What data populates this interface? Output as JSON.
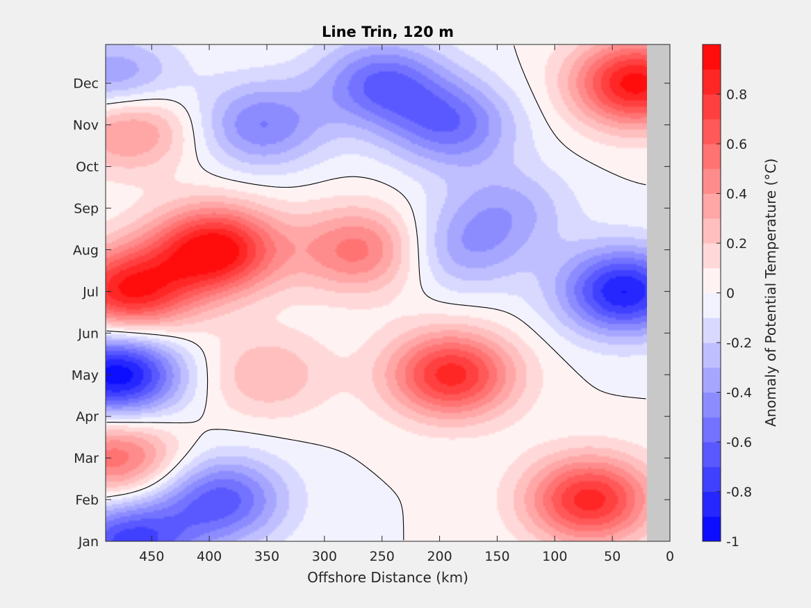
{
  "chart_data": {
    "type": "heatmap",
    "title": "Line Trin, 120 m",
    "xlabel": "Offshore Distance (km)",
    "ylabel": "",
    "colorbar_label": "Anomaly of Potential Temperature (°C)",
    "xlim": [
      490,
      0
    ],
    "x_reversed": true,
    "x_ticks": [
      450,
      400,
      350,
      300,
      250,
      200,
      150,
      100,
      50,
      0
    ],
    "y_ticks": [
      "Jan",
      "Feb",
      "Mar",
      "Apr",
      "May",
      "Jun",
      "Jul",
      "Aug",
      "Sep",
      "Oct",
      "Nov",
      "Dec"
    ],
    "colorbar_ticks": [
      "0.8",
      "0.6",
      "0.4",
      "0.2",
      "0",
      "-0.2",
      "-0.4",
      "-0.6",
      "-0.8",
      "-1"
    ],
    "colorbar_tick_values": [
      0.8,
      0.6,
      0.4,
      0.2,
      0,
      -0.2,
      -0.4,
      -0.6,
      -0.8,
      -1
    ],
    "clim": [
      -1,
      1
    ],
    "levels": 20,
    "no_data_range_km": [
      0,
      20
    ],
    "colors": {
      "max": "#ff0000",
      "zero": "#ffffff",
      "min": "#0000ff",
      "no_data": "#c8c8c8",
      "figure_bg": "#f0f0f0"
    },
    "anomaly_centers": [
      {
        "x": 395,
        "month": "Aug",
        "value": 1.0
      },
      {
        "x": 470,
        "month": "Jul",
        "value": 0.9
      },
      {
        "x": 270,
        "month": "Aug",
        "value": 0.55
      },
      {
        "x": 190,
        "month": "May",
        "value": 0.85
      },
      {
        "x": 70,
        "month": "Feb",
        "value": 0.85
      },
      {
        "x": 30,
        "month": "Dec",
        "value": 0.95
      },
      {
        "x": 470,
        "month": "Nov",
        "value": 0.55
      },
      {
        "x": 480,
        "month": "Mar",
        "value": 0.6
      },
      {
        "x": 350,
        "month": "May",
        "value": 0.3
      },
      {
        "x": 480,
        "month": "May",
        "value": -1.0
      },
      {
        "x": 40,
        "month": "Jul",
        "value": -0.9
      },
      {
        "x": 390,
        "month": "Feb",
        "value": -0.65
      },
      {
        "x": 190,
        "month": "Nov",
        "value": -0.55
      },
      {
        "x": 250,
        "month": "Dec",
        "value": -0.6
      },
      {
        "x": 355,
        "month": "Nov",
        "value": -0.5
      },
      {
        "x": 470,
        "month": "Jan",
        "value": -0.75
      },
      {
        "x": 480,
        "month": "Dec",
        "value": -0.5
      },
      {
        "x": 180,
        "month": "Aug",
        "value": -0.35
      },
      {
        "x": 140,
        "month": "Sep",
        "value": -0.3
      }
    ]
  }
}
